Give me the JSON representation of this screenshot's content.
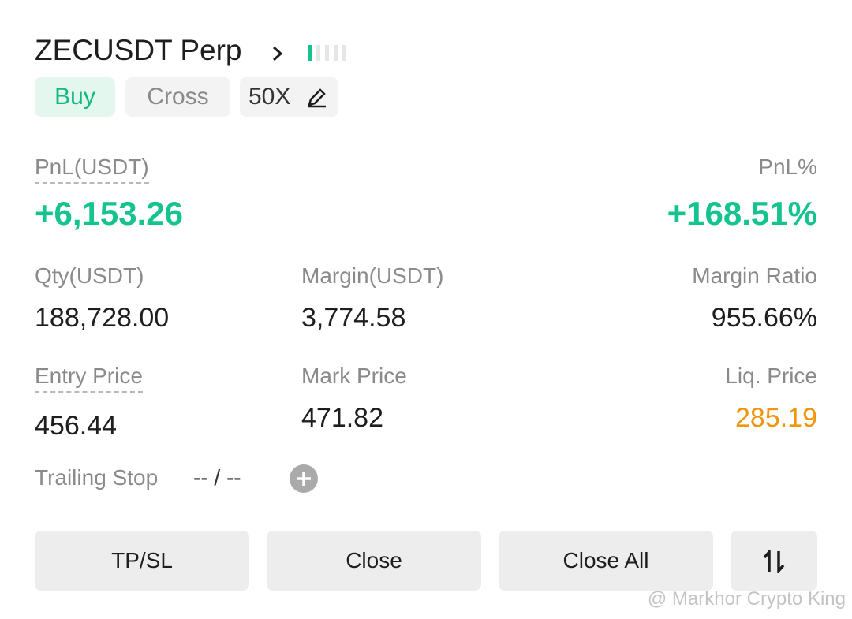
{
  "header": {
    "symbol": "ZECUSDT Perp",
    "side": "Buy",
    "margin_mode": "Cross",
    "leverage": "50X"
  },
  "pnl": {
    "label": "PnL(USDT)",
    "value": "+6,153.26",
    "percent_label": "PnL%",
    "percent_value": "+168.51%"
  },
  "stats": [
    {
      "label": "Qty(USDT)",
      "value": "188,728.00"
    },
    {
      "label": "Margin(USDT)",
      "value": "3,774.58"
    },
    {
      "label": "Margin Ratio",
      "value": "955.66%"
    },
    {
      "label": "Entry Price",
      "value": "456.44"
    },
    {
      "label": "Mark Price",
      "value": "471.82"
    },
    {
      "label": "Liq. Price",
      "value": "285.19"
    }
  ],
  "trailing_stop": {
    "label": "Trailing Stop",
    "value": "-- / --"
  },
  "buttons": [
    "TP/SL",
    "Close",
    "Close All"
  ],
  "watermark": "@ Markhor Crypto King"
}
